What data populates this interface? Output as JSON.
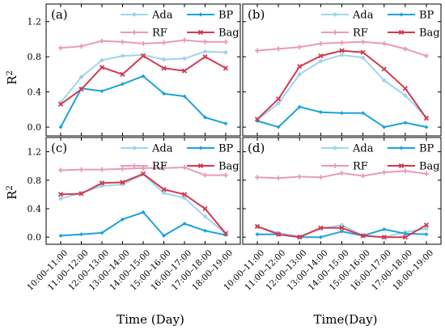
{
  "figure": {
    "ylabel": "R²",
    "xlabel_left": "Time (Day)",
    "xlabel_right": "Time(Day)"
  },
  "colors": {
    "Ada": "#9ed6ee",
    "BP": "#1ba3dc",
    "RF": "#e79cb8",
    "Bag": "#d23a4f"
  },
  "legend": [
    "Ada",
    "BP",
    "RF",
    "Bag"
  ],
  "chart_data": [
    {
      "panel": "(a)",
      "type": "line",
      "categories": [
        "10:00–11:00",
        "11:00–12:00",
        "12:00–13:00",
        "13:00–14:00",
        "14:00–15:00",
        "15:00–16:00",
        "16:00–17:00",
        "17:00–18:00",
        "18:00–19:00"
      ],
      "ylim": [
        -0.1,
        1.4
      ],
      "yticks": [
        "0.0",
        "0.4",
        "0.8",
        "1.2"
      ],
      "series": [
        {
          "name": "Ada",
          "values": [
            0.28,
            0.57,
            0.76,
            0.81,
            0.82,
            0.77,
            0.78,
            0.86,
            0.85
          ]
        },
        {
          "name": "BP",
          "values": [
            0.0,
            0.44,
            0.41,
            0.49,
            0.58,
            0.38,
            0.35,
            0.11,
            0.04
          ]
        },
        {
          "name": "RF",
          "values": [
            0.9,
            0.92,
            0.98,
            0.97,
            0.95,
            0.96,
            0.99,
            0.97,
            0.97
          ]
        },
        {
          "name": "Bag",
          "values": [
            0.26,
            0.43,
            0.68,
            0.6,
            0.81,
            0.67,
            0.64,
            0.8,
            0.67
          ]
        }
      ]
    },
    {
      "panel": "(b)",
      "type": "line",
      "categories": [
        "10:00–11:00",
        "11:00–12:00",
        "12:00–13:00",
        "13:00–14:00",
        "14:00–15:00",
        "15:00–16:00",
        "16:00–17:00",
        "17:00–18:00",
        "18:00–19:00"
      ],
      "ylim": [
        -0.1,
        1.4
      ],
      "yticks": [
        "0.0",
        "0.4",
        "0.8",
        "1.2"
      ],
      "series": [
        {
          "name": "Ada",
          "values": [
            0.08,
            0.27,
            0.6,
            0.75,
            0.82,
            0.79,
            0.53,
            0.36,
            0.11
          ]
        },
        {
          "name": "BP",
          "values": [
            0.07,
            0.0,
            0.23,
            0.17,
            0.16,
            0.16,
            0.0,
            0.05,
            0.0
          ]
        },
        {
          "name": "RF",
          "values": [
            0.87,
            0.89,
            0.91,
            0.95,
            0.96,
            0.97,
            0.95,
            0.89,
            0.81
          ]
        },
        {
          "name": "Bag",
          "values": [
            0.09,
            0.32,
            0.69,
            0.81,
            0.87,
            0.85,
            0.66,
            0.44,
            0.1
          ]
        }
      ]
    },
    {
      "panel": "(c)",
      "type": "line",
      "categories": [
        "10:00–11:00",
        "11:00–12:00",
        "12:00–13:00",
        "13:00–14:00",
        "14:00–15:00",
        "15:00–16:00",
        "16:00–17:00",
        "17:00–18:00",
        "18:00–19:00"
      ],
      "ylim": [
        -0.1,
        1.4
      ],
      "yticks": [
        "0.0",
        "0.4",
        "0.8",
        "1.2"
      ],
      "series": [
        {
          "name": "Ada",
          "values": [
            0.54,
            0.62,
            0.72,
            0.74,
            0.88,
            0.62,
            0.55,
            0.29,
            0.05
          ]
        },
        {
          "name": "BP",
          "values": [
            0.02,
            0.04,
            0.06,
            0.25,
            0.35,
            0.02,
            0.19,
            0.09,
            0.03
          ]
        },
        {
          "name": "RF",
          "values": [
            0.94,
            0.95,
            0.95,
            0.96,
            0.97,
            0.97,
            0.98,
            0.87,
            0.87
          ]
        },
        {
          "name": "Bag",
          "values": [
            0.6,
            0.61,
            0.76,
            0.77,
            0.89,
            0.67,
            0.6,
            0.4,
            0.05
          ]
        }
      ]
    },
    {
      "panel": "(d)",
      "type": "line",
      "categories": [
        "10:00–11:00",
        "11:00–12:00",
        "12:00–13:00",
        "13:00–14:00",
        "14:00–15:00",
        "15:00–16:00",
        "16:00–17:00",
        "17:00–18:00",
        "18:00–19:00"
      ],
      "ylim": [
        -0.1,
        1.4
      ],
      "yticks": [
        "0.0",
        "0.4",
        "0.8",
        "1.2"
      ],
      "series": [
        {
          "name": "Ada",
          "values": [
            0.15,
            0.06,
            0.01,
            0.12,
            0.17,
            0.02,
            0.0,
            0.07,
            0.12
          ]
        },
        {
          "name": "BP",
          "values": [
            0.04,
            0.04,
            0.0,
            0.0,
            0.08,
            0.02,
            0.11,
            0.05,
            0.04
          ]
        },
        {
          "name": "RF",
          "values": [
            0.84,
            0.83,
            0.85,
            0.84,
            0.9,
            0.86,
            0.91,
            0.93,
            0.89
          ]
        },
        {
          "name": "Bag",
          "values": [
            0.15,
            0.04,
            0.0,
            0.13,
            0.13,
            0.02,
            0.0,
            0.0,
            0.17
          ]
        }
      ]
    }
  ]
}
